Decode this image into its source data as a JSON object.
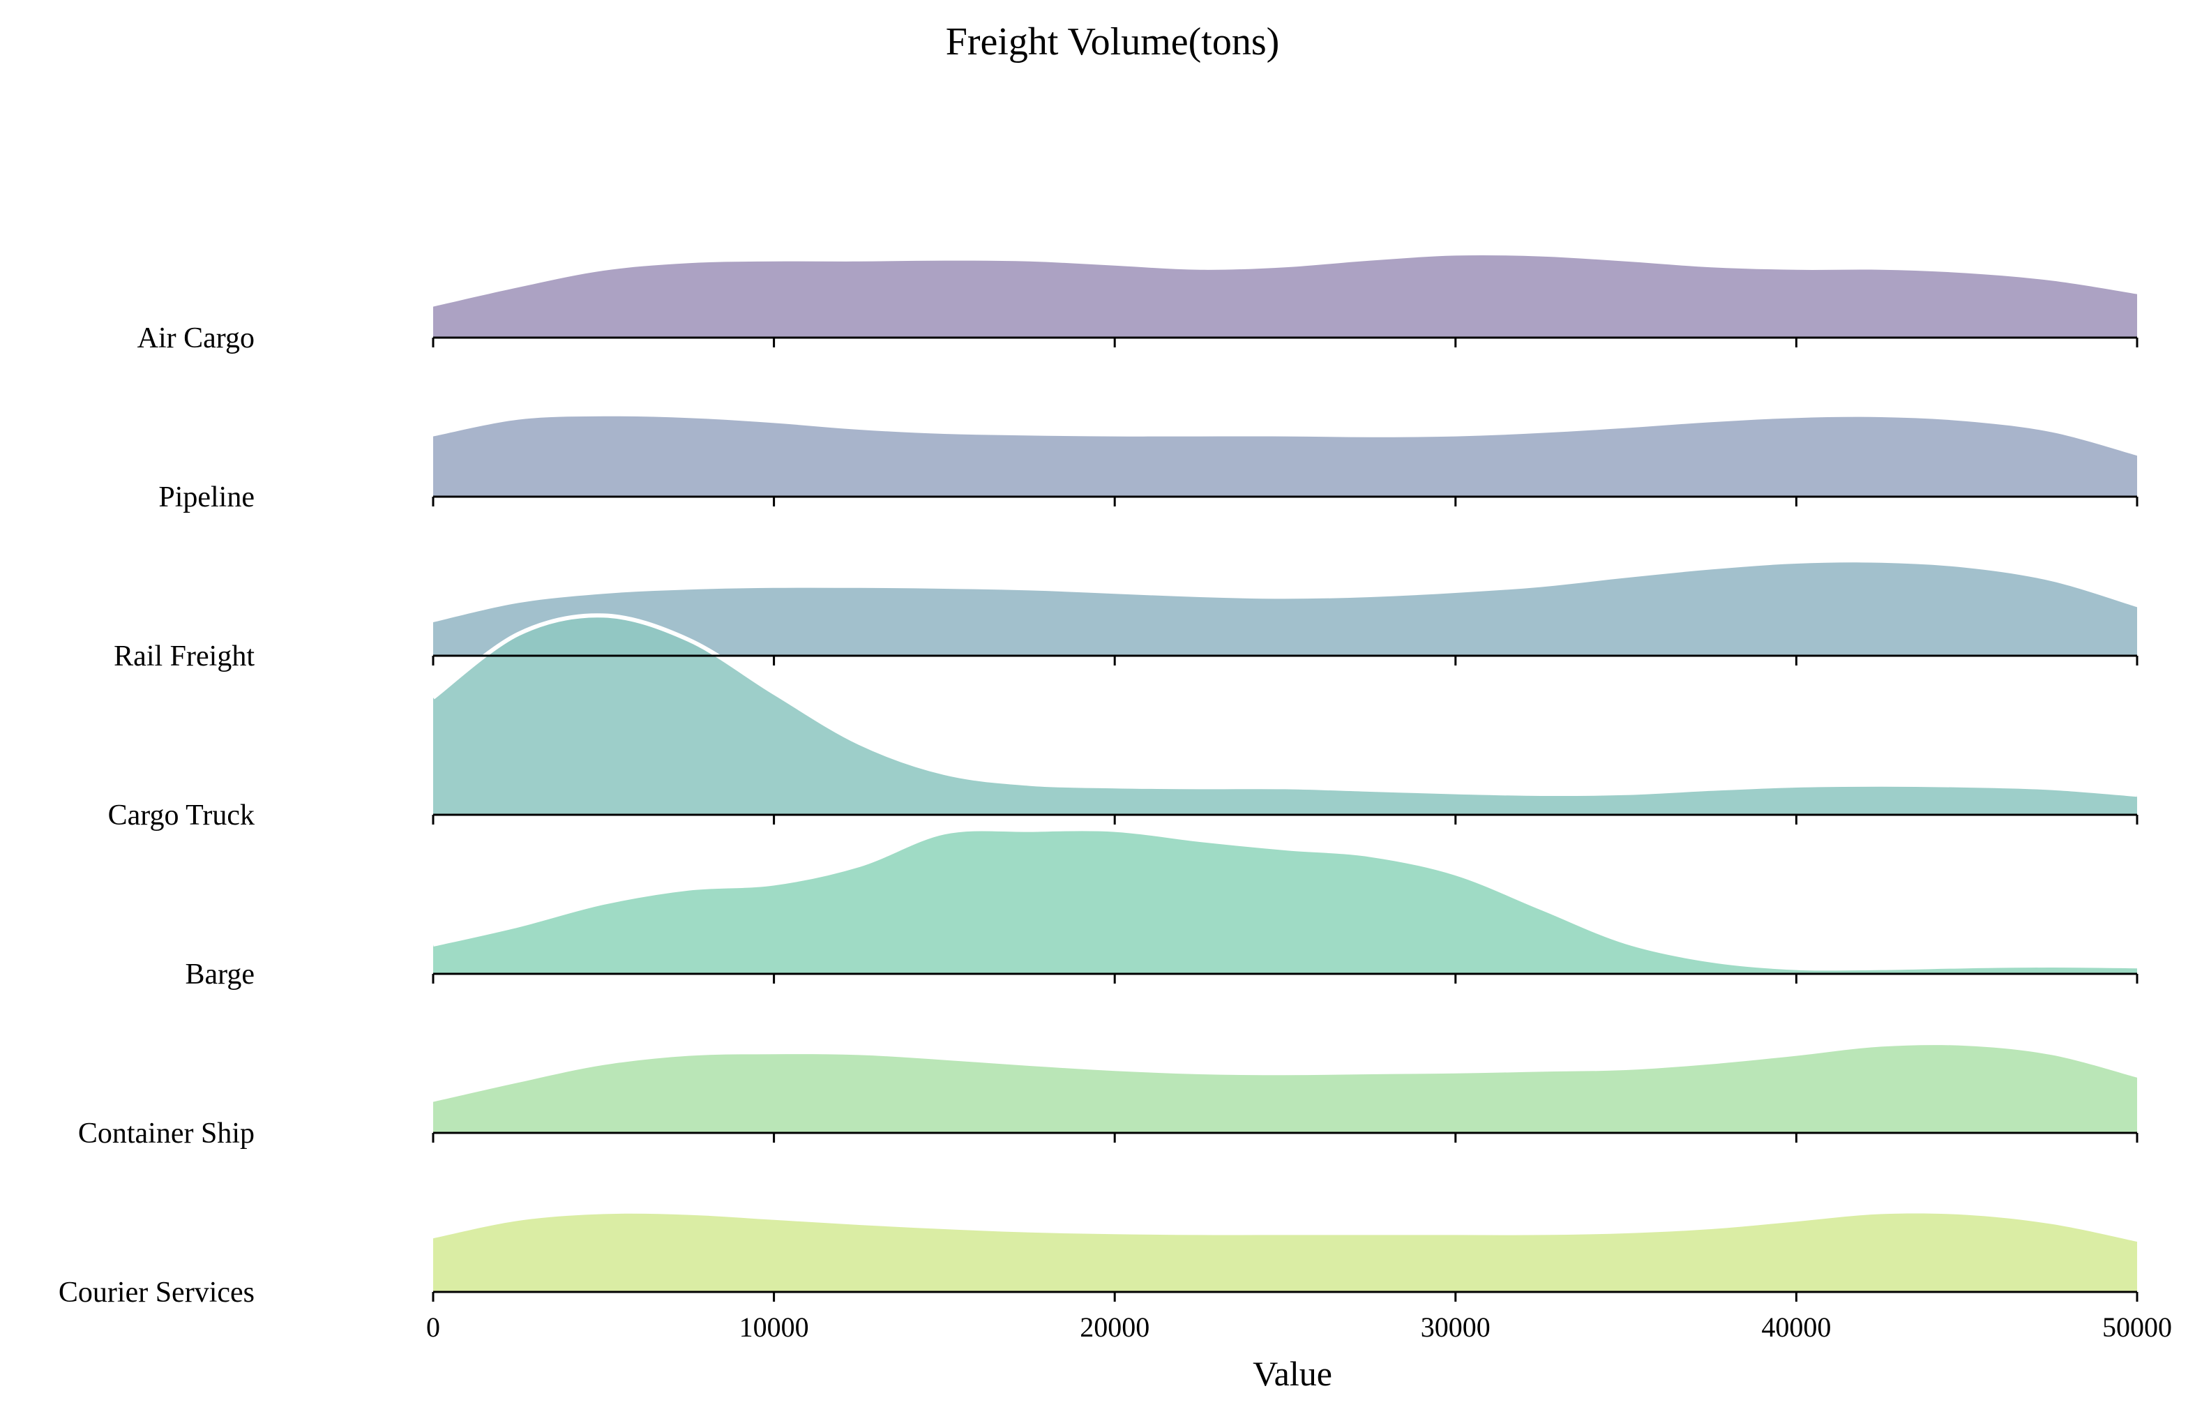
{
  "chart_data": {
    "type": "area",
    "subtype": "ridgeline",
    "title": "Freight Volume(tons)",
    "xlabel": "Value",
    "ylabel": "",
    "xlim": [
      0,
      50000
    ],
    "xticks": [
      0,
      10000,
      20000,
      30000,
      40000,
      50000
    ],
    "grid": false,
    "legend": "none",
    "highlight_outline_color": "#ffffff",
    "series": [
      {
        "name": "Air Cargo",
        "color": "#a195bb",
        "x": [
          0,
          2500,
          5000,
          7500,
          10000,
          12500,
          15000,
          17500,
          20000,
          22500,
          25000,
          27500,
          30000,
          32500,
          35000,
          37500,
          40000,
          42500,
          45000,
          47500,
          50000
        ],
        "density": [
          0.37,
          0.6,
          0.8,
          0.89,
          0.91,
          0.91,
          0.92,
          0.91,
          0.86,
          0.81,
          0.84,
          0.92,
          0.98,
          0.97,
          0.91,
          0.84,
          0.81,
          0.81,
          0.77,
          0.68,
          0.52
        ]
      },
      {
        "name": "Pipeline",
        "color": "#9caac4",
        "x": [
          0,
          2500,
          5000,
          7500,
          10000,
          12500,
          15000,
          17500,
          20000,
          22500,
          25000,
          27500,
          30000,
          32500,
          35000,
          37500,
          40000,
          42500,
          45000,
          47500,
          50000
        ],
        "density": [
          0.72,
          0.92,
          0.96,
          0.94,
          0.88,
          0.8,
          0.75,
          0.73,
          0.72,
          0.72,
          0.72,
          0.71,
          0.72,
          0.76,
          0.82,
          0.89,
          0.94,
          0.95,
          0.9,
          0.77,
          0.49
        ]
      },
      {
        "name": "Rail Freight",
        "color": "#95b7c5",
        "x": [
          0,
          2500,
          5000,
          7500,
          10000,
          12500,
          15000,
          17500,
          20000,
          22500,
          25000,
          27500,
          30000,
          32500,
          35000,
          37500,
          40000,
          42500,
          45000,
          47500,
          50000
        ],
        "density": [
          0.4,
          0.63,
          0.74,
          0.79,
          0.81,
          0.81,
          0.8,
          0.78,
          0.74,
          0.7,
          0.68,
          0.7,
          0.75,
          0.82,
          0.93,
          1.03,
          1.1,
          1.11,
          1.05,
          0.89,
          0.58
        ]
      },
      {
        "name": "Cargo Truck",
        "color": "#90c7c2",
        "highlight": true,
        "x": [
          0,
          2500,
          5000,
          7500,
          10000,
          12500,
          15000,
          17500,
          20000,
          22500,
          25000,
          27500,
          30000,
          32500,
          35000,
          37500,
          40000,
          42500,
          45000,
          47500,
          50000
        ],
        "density": [
          1.4,
          2.16,
          2.38,
          2.09,
          1.46,
          0.86,
          0.5,
          0.37,
          0.34,
          0.33,
          0.33,
          0.3,
          0.27,
          0.25,
          0.26,
          0.31,
          0.35,
          0.36,
          0.35,
          0.32,
          0.24
        ]
      },
      {
        "name": "Barge",
        "color": "#92d6bd",
        "highlight": true,
        "x": [
          0,
          2500,
          5000,
          7500,
          10000,
          12500,
          15000,
          17500,
          20000,
          22500,
          25000,
          27500,
          30000,
          32500,
          35000,
          37500,
          40000,
          42500,
          45000,
          47500,
          50000
        ],
        "density": [
          0.35,
          0.58,
          0.85,
          1.02,
          1.08,
          1.3,
          1.69,
          1.72,
          1.72,
          1.6,
          1.5,
          1.42,
          1.2,
          0.79,
          0.38,
          0.16,
          0.07,
          0.07,
          0.09,
          0.1,
          0.09
        ]
      },
      {
        "name": "Container Ship",
        "color": "#b0e2ad",
        "x": [
          0,
          2500,
          5000,
          7500,
          10000,
          12500,
          15000,
          17500,
          20000,
          22500,
          25000,
          27500,
          30000,
          32500,
          35000,
          37500,
          40000,
          42500,
          45000,
          47500,
          50000
        ],
        "density": [
          0.37,
          0.6,
          0.81,
          0.92,
          0.94,
          0.93,
          0.87,
          0.8,
          0.74,
          0.7,
          0.69,
          0.7,
          0.71,
          0.73,
          0.75,
          0.82,
          0.92,
          1.03,
          1.04,
          0.93,
          0.66
        ]
      },
      {
        "name": "Courier Services",
        "color": "#d5ea97",
        "x": [
          0,
          2500,
          5000,
          7500,
          10000,
          12500,
          15000,
          17500,
          20000,
          22500,
          25000,
          27500,
          30000,
          32500,
          35000,
          37500,
          40000,
          42500,
          45000,
          47500,
          50000
        ],
        "density": [
          0.64,
          0.85,
          0.93,
          0.92,
          0.86,
          0.8,
          0.75,
          0.71,
          0.69,
          0.68,
          0.68,
          0.68,
          0.68,
          0.68,
          0.7,
          0.75,
          0.84,
          0.93,
          0.92,
          0.81,
          0.6
        ]
      }
    ]
  }
}
